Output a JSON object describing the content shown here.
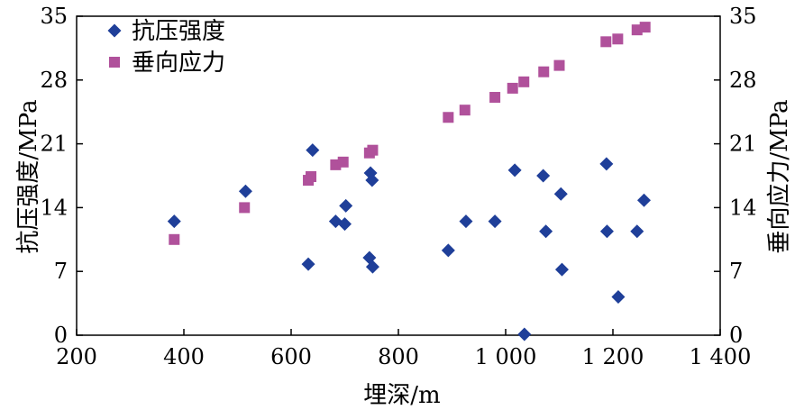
{
  "chart_data": {
    "type": "scatter",
    "xlabel": "埋深/m",
    "ylabel_left": "抗压强度/MPa",
    "ylabel_right": "垂向应力/MPa",
    "xlim": [
      200,
      1400
    ],
    "ylim": [
      0,
      35
    ],
    "x_ticks": [
      200,
      400,
      600,
      800,
      1000,
      1200,
      1400
    ],
    "x_tick_labels": [
      "200",
      "400",
      "600",
      "800",
      "1 000",
      "1 200",
      "1 400"
    ],
    "y_ticks": [
      0,
      7,
      14,
      21,
      28,
      35
    ],
    "y_tick_labels": [
      "0",
      "7",
      "14",
      "21",
      "28",
      "35"
    ],
    "grid": false,
    "legend_position": "top-left",
    "series": [
      {
        "name": "抗压强度",
        "marker": "diamond",
        "color": "#1f3f99",
        "points": [
          [
            382,
            12.5
          ],
          [
            515,
            15.8
          ],
          [
            632,
            7.8
          ],
          [
            640,
            20.3
          ],
          [
            683,
            12.5
          ],
          [
            700,
            12.2
          ],
          [
            702,
            14.2
          ],
          [
            746,
            8.5
          ],
          [
            748,
            17.8
          ],
          [
            751,
            17.0
          ],
          [
            752,
            7.5
          ],
          [
            893,
            9.3
          ],
          [
            926,
            12.5
          ],
          [
            980,
            12.5
          ],
          [
            1017,
            18.1
          ],
          [
            1035,
            0.1
          ],
          [
            1070,
            17.5
          ],
          [
            1075,
            11.4
          ],
          [
            1103,
            15.5
          ],
          [
            1105,
            7.2
          ],
          [
            1188,
            18.8
          ],
          [
            1189,
            11.4
          ],
          [
            1210,
            4.2
          ],
          [
            1245,
            11.4
          ],
          [
            1258,
            14.8
          ]
        ]
      },
      {
        "name": "垂向应力",
        "marker": "square",
        "color": "#b0519b",
        "points": [
          [
            382,
            10.5
          ],
          [
            513,
            14.0
          ],
          [
            632,
            17.0
          ],
          [
            637,
            17.4
          ],
          [
            683,
            18.7
          ],
          [
            697,
            19.0
          ],
          [
            746,
            20.0
          ],
          [
            752,
            20.3
          ],
          [
            893,
            23.9
          ],
          [
            924,
            24.7
          ],
          [
            980,
            26.1
          ],
          [
            1013,
            27.1
          ],
          [
            1034,
            27.8
          ],
          [
            1071,
            28.9
          ],
          [
            1100,
            29.6
          ],
          [
            1187,
            32.2
          ],
          [
            1209,
            32.5
          ],
          [
            1245,
            33.5
          ],
          [
            1260,
            33.8
          ]
        ]
      }
    ]
  }
}
